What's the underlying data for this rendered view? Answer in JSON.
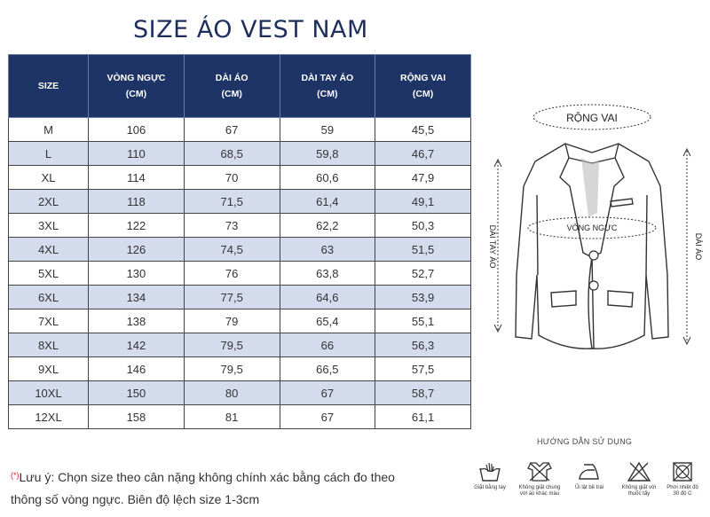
{
  "title": "SIZE ÁO VEST NAM",
  "table": {
    "headers": [
      "SIZE",
      "VÒNG NGỰC\n(CM)",
      "DÀI ÁO\n(CM)",
      "DÀI TAY ÁO\n(CM)",
      "RỘNG VAI\n(CM)"
    ],
    "rows": [
      [
        "M",
        "106",
        "67",
        "59",
        "45,5"
      ],
      [
        "L",
        "110",
        "68,5",
        "59,8",
        "46,7"
      ],
      [
        "XL",
        "114",
        "70",
        "60,6",
        "47,9"
      ],
      [
        "2XL",
        "118",
        "71,5",
        "61,4",
        "49,1"
      ],
      [
        "3XL",
        "122",
        "73",
        "62,2",
        "50,3"
      ],
      [
        "4XL",
        "126",
        "74,5",
        "63",
        "51,5"
      ],
      [
        "5XL",
        "130",
        "76",
        "63,8",
        "52,7"
      ],
      [
        "6XL",
        "134",
        "77,5",
        "64,6",
        "53,9"
      ],
      [
        "7XL",
        "138",
        "79",
        "65,4",
        "55,1"
      ],
      [
        "8XL",
        "142",
        "79,5",
        "66",
        "56,3"
      ],
      [
        "9XL",
        "146",
        "79,5",
        "66,5",
        "57,5"
      ],
      [
        "10XL",
        "150",
        "80",
        "67",
        "58,7"
      ],
      [
        "12XL",
        "158",
        "81",
        "67",
        "61,1"
      ]
    ]
  },
  "diagram": {
    "shoulder_label": "RỘNG VAI",
    "chest_label": "VÒNG NGỰC",
    "sleeve_label": "DÀI TAY ÁO",
    "length_label": "DÀI ÁO"
  },
  "note": {
    "marker": "(*)",
    "line1": "Lưu ý: Chọn size theo cân nặng không chính xác bằng cách đo theo",
    "line2": "thông số vòng ngực. Biên độ lệch size 1-3cm"
  },
  "guide_title": "HƯỚNG DẪN SỬ DỤNG",
  "care": [
    {
      "icon": "hand-wash-icon",
      "label": "Giặt bằng tay"
    },
    {
      "icon": "no-mixed-wash-icon",
      "label": "Không giặt chung\nvới áo khác màu"
    },
    {
      "icon": "iron-reverse-icon",
      "label": "Ủi lật bề trái"
    },
    {
      "icon": "no-bleach-icon",
      "label": "Không giặt với\nthuốc tẩy"
    },
    {
      "icon": "tumble-dry-icon",
      "label": "Phơi nhiệt độ\n30 độ C"
    }
  ],
  "colors": {
    "header": "#1f3466",
    "alt_row": "#d3dbec",
    "title": "#1e2f5e"
  }
}
